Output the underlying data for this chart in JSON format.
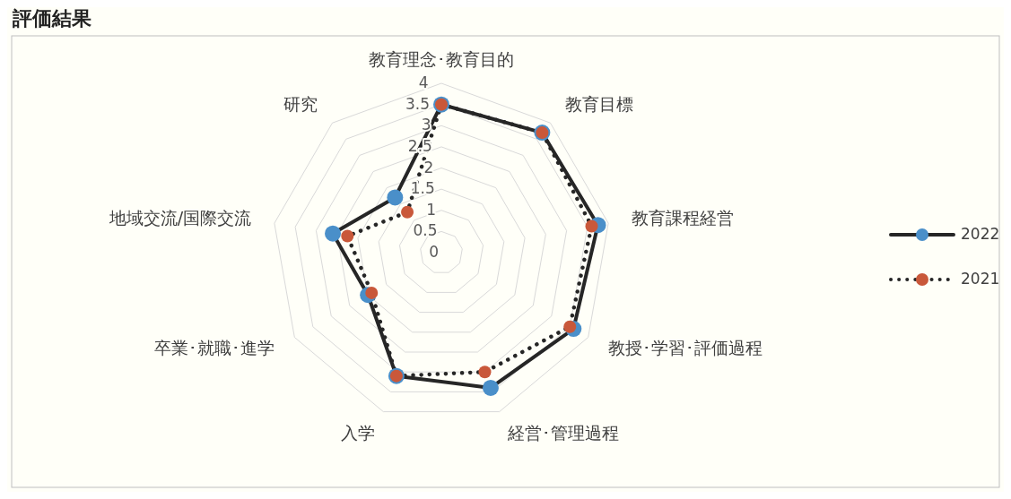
{
  "chart_data": {
    "type": "radar",
    "title": "評価結果",
    "categories": [
      "教育理念･教育目的",
      "教育目標",
      "教育課程経営",
      "教授･学習･評価過程",
      "経営･管理過程",
      "入学",
      "卒業･就職･進学",
      "地域交流/国際交流",
      "研究"
    ],
    "series": [
      {
        "name": "2022",
        "color": "#262626",
        "colors": [
          "#4a8fc9",
          "#4a8fc9",
          "#4a8fc9",
          "#4a8fc9",
          "#4a8fc9",
          "#4a8fc9",
          "#4a8fc9",
          "#4a8fc9",
          "#4a8fc9"
        ],
        "line_style": "solid",
        "values": [
          3.5,
          3.7,
          3.75,
          3.6,
          3.4,
          3.1,
          2.0,
          2.6,
          1.7
        ]
      },
      {
        "name": "2021",
        "color": "#262626",
        "colors": [
          "#c9583a",
          "#c9583a",
          "#c9583a",
          "#c9583a",
          "#c9583a",
          "#c9583a",
          "#c9583a",
          "#c9583a",
          "#c9583a"
        ],
        "line_style": "dotted",
        "values": [
          3.5,
          3.7,
          3.6,
          3.5,
          3.0,
          3.1,
          1.9,
          2.25,
          1.25
        ]
      }
    ],
    "ylim": [
      0,
      4
    ],
    "yticks": [
      0,
      0.5,
      1,
      1.5,
      2,
      2.5,
      3,
      3.5,
      4
    ],
    "grid": true,
    "legend": "right",
    "marker": "circle"
  }
}
